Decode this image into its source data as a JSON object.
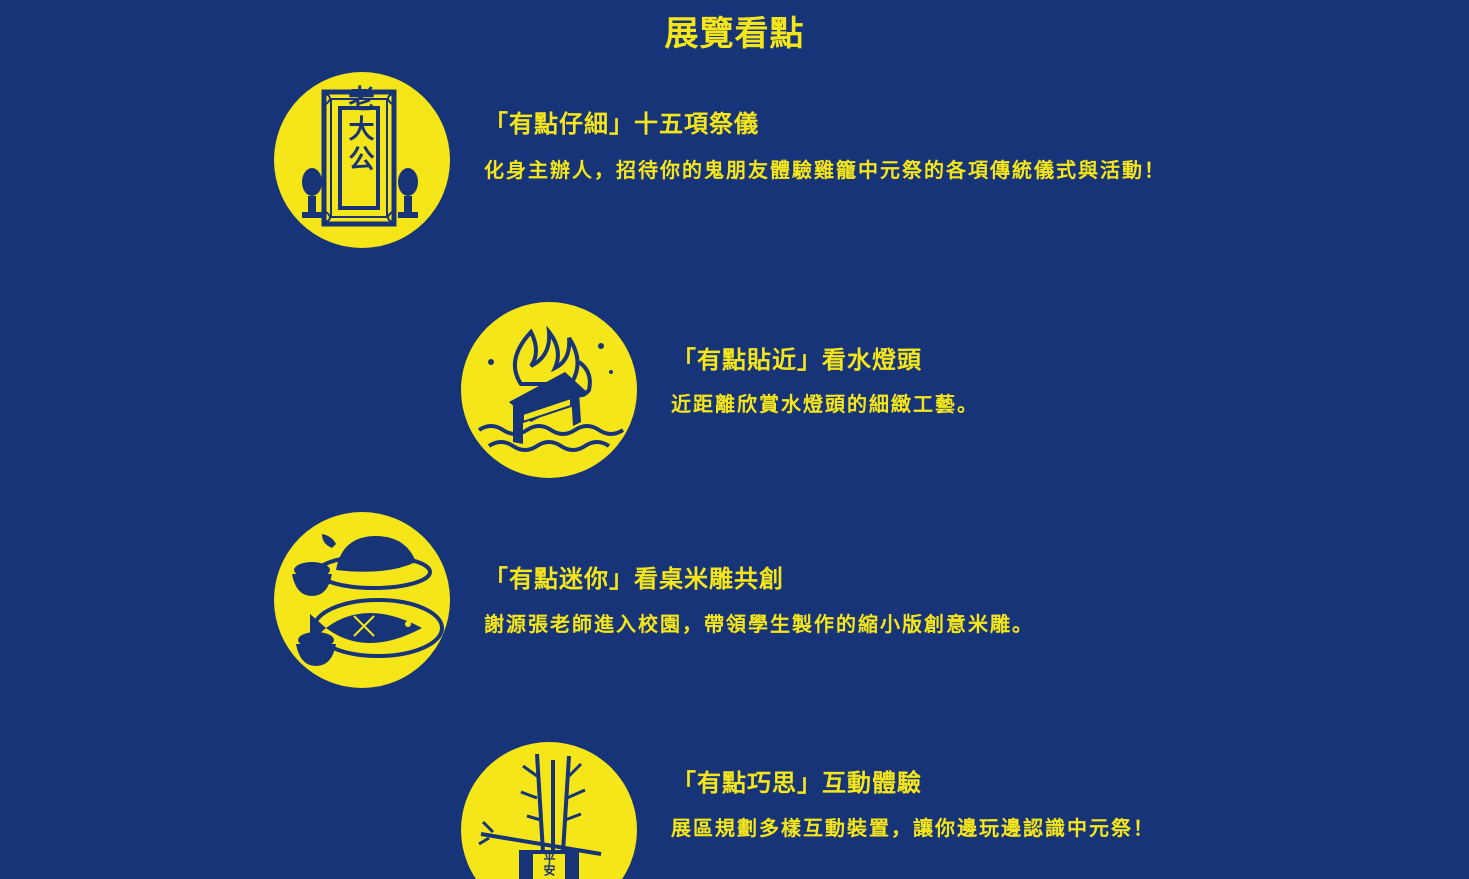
{
  "section_title": "展覽看點",
  "highlights": [
    {
      "title": "「有點仔細」十五項祭儀",
      "description": "化身主辦人，招待你的鬼朋友體驗雞籠中元祭的各項傳統儀式與活動！",
      "icon": "altar-tablet-icon",
      "tablet_text": "老大公"
    },
    {
      "title": "「有點貼近」看水燈頭",
      "description": "近距離欣賞水燈頭的細緻工藝。",
      "icon": "water-lantern-fire-icon"
    },
    {
      "title": "「有點迷你」看桌米雕共創",
      "description": "謝源張老師進入校園，帶領學生製作的縮小版創意米雕。",
      "icon": "rice-sculpture-offerings-icon"
    },
    {
      "title": "「有點巧思」互動體驗",
      "description": "展區規劃多樣互動裝置，讓你邊玩邊認識中元祭！",
      "icon": "bamboo-lantern-pole-icon",
      "banner_text": "平安"
    }
  ],
  "colors": {
    "background": "#173478",
    "accent": "#f5e61a"
  }
}
